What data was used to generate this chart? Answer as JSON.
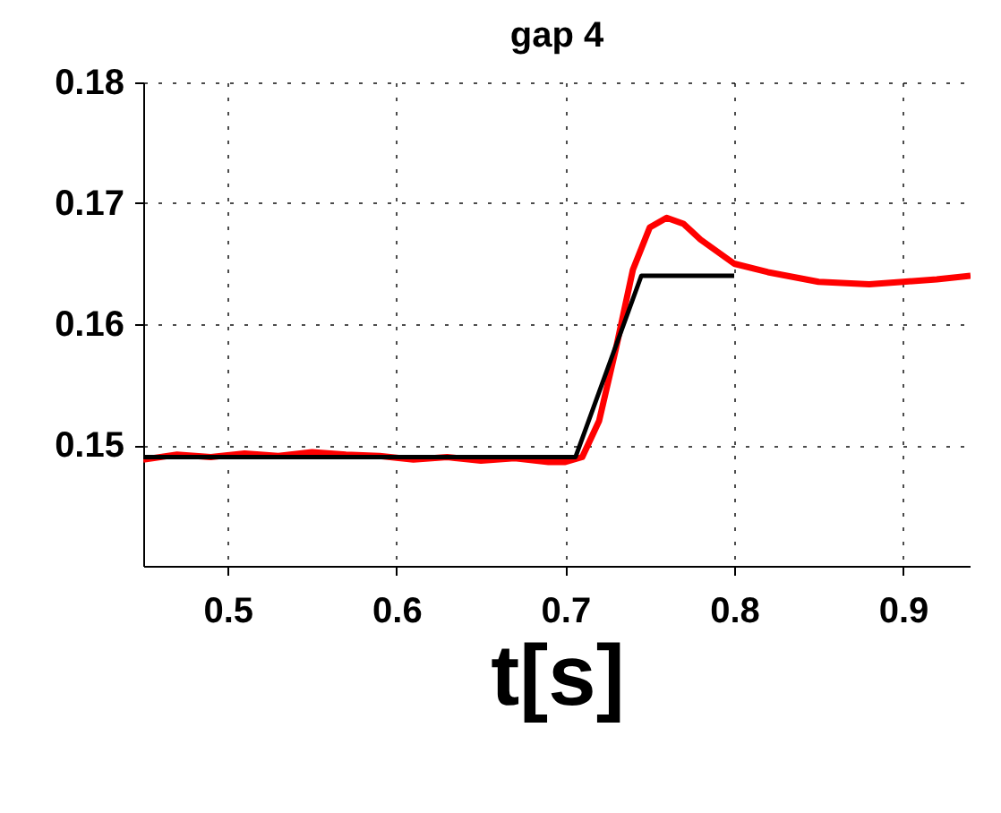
{
  "chart_data": {
    "type": "line",
    "title": "gap 4",
    "xlabel": "t[s]",
    "xlim": [
      0.45,
      0.94
    ],
    "ylim": [
      0.14,
      0.18
    ],
    "xticks": [
      0.5,
      0.6,
      0.7,
      0.8,
      0.9
    ],
    "yticks": [
      0.15,
      0.16,
      0.17,
      0.18
    ],
    "grid": true,
    "line_style": "solid",
    "series": [
      {
        "color": "#ff0000",
        "x": [
          0.45,
          0.47,
          0.49,
          0.51,
          0.53,
          0.55,
          0.57,
          0.59,
          0.61,
          0.63,
          0.65,
          0.67,
          0.69,
          0.7,
          0.71,
          0.72,
          0.73,
          0.74,
          0.75,
          0.76,
          0.77,
          0.78,
          0.79,
          0.8,
          0.82,
          0.85,
          0.88,
          0.9,
          0.92,
          0.94
        ],
        "values": [
          0.1488,
          0.1492,
          0.149,
          0.1493,
          0.1491,
          0.1494,
          0.1492,
          0.1491,
          0.1488,
          0.149,
          0.1487,
          0.1489,
          0.1486,
          0.1486,
          0.149,
          0.152,
          0.158,
          0.1645,
          0.168,
          0.1688,
          0.1683,
          0.167,
          0.166,
          0.165,
          0.1643,
          0.1635,
          0.1633,
          0.1635,
          0.1637,
          0.164
        ]
      },
      {
        "color": "#000000",
        "x": [
          0.45,
          0.706,
          0.745,
          0.8
        ],
        "values": [
          0.149,
          0.149,
          0.164,
          0.164
        ]
      }
    ]
  }
}
